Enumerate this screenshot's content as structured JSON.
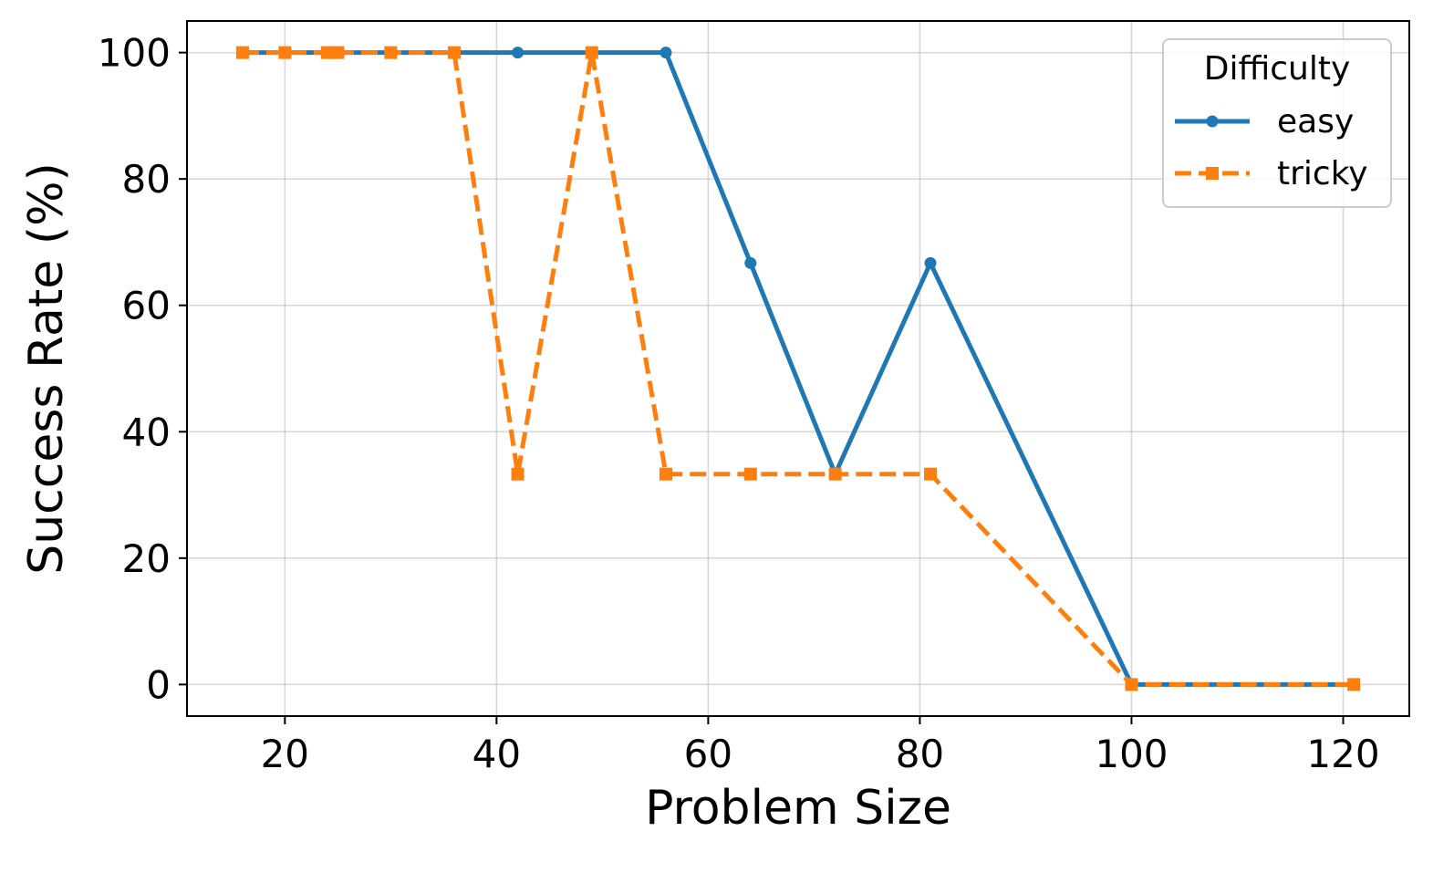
{
  "chart_data": {
    "type": "line",
    "title": "",
    "xlabel": "Problem Size",
    "ylabel": "Success Rate (%)",
    "xlim": [
      10.75,
      126.25
    ],
    "ylim": [
      -5,
      105
    ],
    "xticks": [
      20,
      40,
      60,
      80,
      100,
      120
    ],
    "yticks": [
      0,
      20,
      40,
      60,
      80,
      100
    ],
    "grid": true,
    "legend": {
      "title": "Difficulty",
      "placement": "top-right"
    },
    "series": [
      {
        "name": "easy",
        "color": "#1f77b4",
        "linestyle": "solid",
        "marker": "circle",
        "x": [
          16,
          20,
          24,
          25,
          30,
          36,
          42,
          49,
          56,
          64,
          72,
          81,
          100,
          121
        ],
        "y": [
          100,
          100,
          100,
          100,
          100,
          100,
          100,
          100,
          100,
          66.7,
          33.3,
          66.7,
          0,
          0
        ]
      },
      {
        "name": "tricky",
        "color": "#ff7f0e",
        "linestyle": "dashed",
        "marker": "square",
        "x": [
          16,
          20,
          24,
          25,
          30,
          36,
          42,
          49,
          56,
          64,
          72,
          81,
          100,
          121
        ],
        "y": [
          100,
          100,
          100,
          100,
          100,
          100,
          33.3,
          100,
          33.3,
          33.3,
          33.3,
          33.3,
          0,
          0
        ]
      }
    ]
  }
}
